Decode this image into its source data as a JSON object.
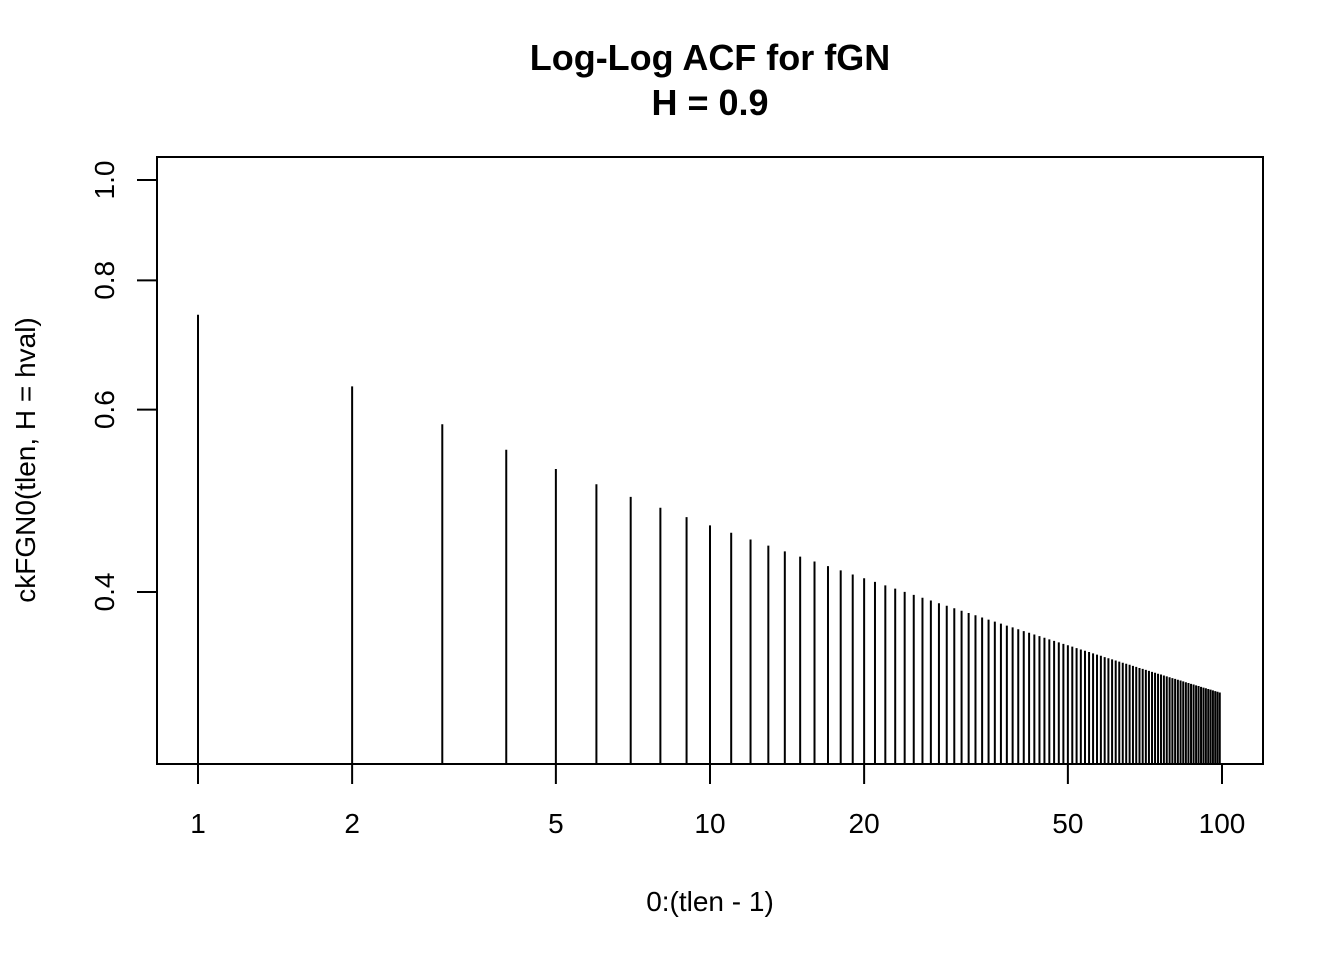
{
  "chart_data": {
    "type": "bar",
    "style": "vertical spikes (type='h')",
    "title": "Log-Log ACF for fGN",
    "subtitle": "H = 0.9",
    "xlabel": "0:(tlen - 1)",
    "ylabel": "ckFGN0(tlen, H = hval)",
    "x_scale": "log",
    "y_scale": "log",
    "xlim": [
      1,
      100
    ],
    "ylim": [
      0.303,
      1.0
    ],
    "grid": false,
    "legend": "none",
    "x_ticks": [
      {
        "value": 1,
        "label": "1"
      },
      {
        "value": 2,
        "label": "2"
      },
      {
        "value": 5,
        "label": "5"
      },
      {
        "value": 10,
        "label": "10"
      },
      {
        "value": 20,
        "label": "20"
      },
      {
        "value": 50,
        "label": "50"
      },
      {
        "value": 100,
        "label": "100"
      }
    ],
    "y_ticks": [
      {
        "value": 0.4,
        "label": "0.4"
      },
      {
        "value": 0.6,
        "label": "0.6"
      },
      {
        "value": 0.8,
        "label": "0.8"
      },
      {
        "value": 1.0,
        "label": "1.0"
      }
    ],
    "hurst": 0.9,
    "x": [
      1,
      2,
      3,
      4,
      5,
      6,
      7,
      8,
      9,
      10,
      11,
      12,
      13,
      14,
      15,
      16,
      17,
      18,
      19,
      20,
      21,
      22,
      23,
      24,
      25,
      26,
      27,
      28,
      29,
      30,
      31,
      32,
      33,
      34,
      35,
      36,
      37,
      38,
      39,
      40,
      41,
      42,
      43,
      44,
      45,
      46,
      47,
      48,
      49,
      50,
      51,
      52,
      53,
      54,
      55,
      56,
      57,
      58,
      59,
      60,
      61,
      62,
      63,
      64,
      65,
      66,
      67,
      68,
      69,
      70,
      71,
      72,
      73,
      74,
      75,
      76,
      77,
      78,
      79,
      80,
      81,
      82,
      83,
      84,
      85,
      86,
      87,
      88,
      89,
      90,
      91,
      92,
      93,
      94,
      95,
      96,
      97,
      98,
      99
    ],
    "values": [
      0.7411,
      0.6319,
      0.5809,
      0.5488,
      0.5259,
      0.5083,
      0.4942,
      0.4825,
      0.4725,
      0.4639,
      0.4563,
      0.4495,
      0.4434,
      0.4378,
      0.4327,
      0.4281,
      0.4237,
      0.4197,
      0.4159,
      0.4124,
      0.4091,
      0.4059,
      0.403,
      0.4001,
      0.3975,
      0.3949,
      0.3925,
      0.3901,
      0.3879,
      0.3858,
      0.3837,
      0.3817,
      0.3798,
      0.378,
      0.3762,
      0.3745,
      0.3728,
      0.3712,
      0.3697,
      0.3682,
      0.3667,
      0.3653,
      0.3639,
      0.3626,
      0.3613,
      0.36,
      0.3588,
      0.3576,
      0.3564,
      0.3553,
      0.3542,
      0.3531,
      0.352,
      0.351,
      0.35,
      0.349,
      0.348,
      0.3471,
      0.3461,
      0.3452,
      0.3443,
      0.3435,
      0.3426,
      0.3418,
      0.341,
      0.3402,
      0.3394,
      0.3386,
      0.3378,
      0.3371,
      0.3364,
      0.3356,
      0.3349,
      0.3342,
      0.3335,
      0.3329,
      0.3322,
      0.3316,
      0.3309,
      0.3303,
      0.3297,
      0.3291,
      0.3285,
      0.3279,
      0.3273,
      0.3267,
      0.3261,
      0.3256,
      0.325,
      0.3245,
      0.3239,
      0.3234,
      0.3229,
      0.3224,
      0.3219,
      0.3214,
      0.3209,
      0.3204,
      0.3199
    ]
  }
}
